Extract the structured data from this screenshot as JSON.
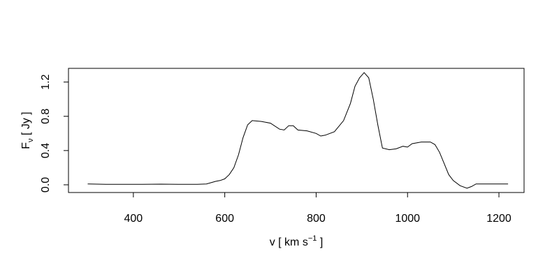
{
  "chart_data": {
    "type": "line",
    "x_label": [
      "v [ km s",
      "−1",
      " ]"
    ],
    "y_label": [
      "F",
      "ν",
      " [ Jy ]"
    ],
    "x": [
      300,
      340,
      380,
      420,
      460,
      500,
      540,
      560,
      580,
      590,
      600,
      610,
      620,
      630,
      640,
      650,
      660,
      680,
      700,
      720,
      730,
      740,
      750,
      760,
      780,
      800,
      810,
      820,
      840,
      860,
      875,
      885,
      895,
      905,
      915,
      925,
      935,
      945,
      960,
      975,
      990,
      1000,
      1010,
      1030,
      1050,
      1060,
      1070,
      1080,
      1090,
      1100,
      1115,
      1130,
      1140,
      1150,
      1220
    ],
    "y": [
      0.01,
      0.005,
      0.005,
      0.005,
      0.008,
      0.005,
      0.005,
      0.01,
      0.04,
      0.05,
      0.07,
      0.12,
      0.2,
      0.35,
      0.55,
      0.7,
      0.75,
      0.74,
      0.72,
      0.65,
      0.64,
      0.69,
      0.69,
      0.64,
      0.63,
      0.6,
      0.57,
      0.58,
      0.62,
      0.75,
      0.95,
      1.15,
      1.25,
      1.31,
      1.25,
      1.0,
      0.7,
      0.43,
      0.41,
      0.42,
      0.45,
      0.44,
      0.48,
      0.5,
      0.5,
      0.47,
      0.38,
      0.25,
      0.12,
      0.05,
      -0.01,
      -0.04,
      -0.02,
      0.01,
      0.01
    ],
    "color": "#000000",
    "xlim": [
      258,
      1255
    ],
    "ylim": [
      -0.09,
      1.36
    ],
    "xticks": [
      400,
      600,
      800,
      1000,
      1200
    ],
    "yticks": [
      {
        "value": 0,
        "label": "0.0"
      },
      {
        "value": 0.4,
        "label": "0.4"
      },
      {
        "value": 0.8,
        "label": "0.8"
      },
      {
        "value": 1.2,
        "label": "1.2"
      }
    ]
  }
}
